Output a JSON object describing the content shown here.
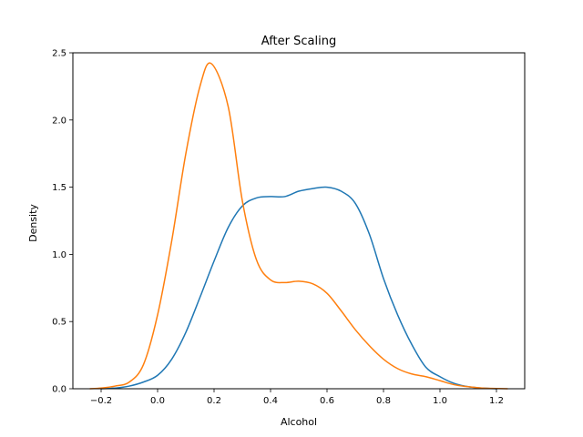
{
  "chart_data": {
    "type": "line",
    "title": "After Scaling",
    "xlabel": "Alcohol",
    "ylabel": "Density",
    "xlim": [
      -0.3,
      1.3
    ],
    "ylim": [
      0,
      2.5
    ],
    "xticks": [
      -0.2,
      0.0,
      0.2,
      0.4,
      0.6,
      0.8,
      1.0,
      1.2
    ],
    "xtick_labels": [
      "−0.2",
      "0.0",
      "0.2",
      "0.4",
      "0.6",
      "0.8",
      "1.0",
      "1.2"
    ],
    "yticks": [
      0.0,
      0.5,
      1.0,
      1.5,
      2.0,
      2.5
    ],
    "ytick_labels": [
      "0.0",
      "0.5",
      "1.0",
      "1.5",
      "2.0",
      "2.5"
    ],
    "grid": false,
    "legend": false,
    "series": [
      {
        "color": "#1f77b4",
        "x": [
          -0.2,
          -0.15,
          -0.1,
          -0.05,
          0.0,
          0.05,
          0.1,
          0.15,
          0.2,
          0.25,
          0.3,
          0.35,
          0.4,
          0.45,
          0.5,
          0.55,
          0.6,
          0.65,
          0.7,
          0.75,
          0.8,
          0.85,
          0.9,
          0.95,
          1.0,
          1.05,
          1.1,
          1.15,
          1.2
        ],
        "y": [
          0.0,
          0.005,
          0.02,
          0.05,
          0.1,
          0.22,
          0.42,
          0.68,
          0.95,
          1.2,
          1.36,
          1.42,
          1.43,
          1.43,
          1.47,
          1.49,
          1.5,
          1.47,
          1.38,
          1.15,
          0.82,
          0.55,
          0.33,
          0.16,
          0.09,
          0.04,
          0.015,
          0.005,
          0.0
        ]
      },
      {
        "color": "#ff7f0e",
        "x": [
          -0.24,
          -0.2,
          -0.15,
          -0.1,
          -0.05,
          0.0,
          0.05,
          0.1,
          0.15,
          0.19,
          0.25,
          0.3,
          0.35,
          0.4,
          0.45,
          0.5,
          0.55,
          0.6,
          0.65,
          0.7,
          0.75,
          0.8,
          0.85,
          0.9,
          0.95,
          1.0,
          1.05,
          1.1,
          1.15,
          1.2,
          1.24
        ],
        "y": [
          0.0,
          0.005,
          0.02,
          0.05,
          0.18,
          0.55,
          1.1,
          1.75,
          2.25,
          2.42,
          2.1,
          1.4,
          0.96,
          0.81,
          0.79,
          0.8,
          0.78,
          0.71,
          0.58,
          0.44,
          0.32,
          0.22,
          0.15,
          0.11,
          0.09,
          0.06,
          0.03,
          0.015,
          0.005,
          0.002,
          0.0
        ]
      }
    ]
  }
}
